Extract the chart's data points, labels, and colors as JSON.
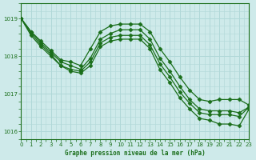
{
  "title": "Graphe pression niveau de la mer (hPa)",
  "bg_color": "#ceeaea",
  "grid_color": "#b0d8d8",
  "line_color": "#1a6e1a",
  "xlim": [
    0,
    23
  ],
  "ylim": [
    1015.8,
    1019.4
  ],
  "yticks": [
    1016,
    1017,
    1018,
    1019
  ],
  "xticks": [
    0,
    1,
    2,
    3,
    4,
    5,
    6,
    7,
    8,
    9,
    10,
    11,
    12,
    13,
    14,
    15,
    16,
    17,
    18,
    19,
    20,
    21,
    22,
    23
  ],
  "series": [
    {
      "x": [
        0,
        1,
        2,
        3,
        4,
        5,
        6,
        7,
        8,
        9,
        10,
        11,
        12,
        13,
        14,
        15,
        16,
        17,
        18,
        19,
        20,
        21,
        22,
        23
      ],
      "y": [
        1019.0,
        1018.65,
        1018.4,
        1018.15,
        1017.9,
        1017.85,
        1017.75,
        1018.2,
        1018.65,
        1018.8,
        1018.85,
        1018.85,
        1018.85,
        1018.65,
        1018.2,
        1017.85,
        1017.45,
        1017.1,
        1016.85,
        1016.8,
        1016.85,
        1016.85,
        1016.85,
        1016.7
      ],
      "marker": "D",
      "markersize": 2.5
    },
    {
      "x": [
        0,
        1,
        2,
        3,
        4,
        5,
        6,
        7,
        8,
        9,
        10,
        11,
        12,
        13,
        14,
        15,
        16,
        17,
        18,
        19,
        20,
        21,
        22,
        23
      ],
      "y": [
        1019.0,
        1018.65,
        1018.35,
        1018.1,
        1017.85,
        1017.75,
        1017.65,
        1017.95,
        1018.45,
        1018.6,
        1018.7,
        1018.7,
        1018.7,
        1018.45,
        1017.95,
        1017.6,
        1017.2,
        1016.85,
        1016.6,
        1016.55,
        1016.55,
        1016.55,
        1016.5,
        1016.65
      ],
      "marker": "D",
      "markersize": 2.5
    },
    {
      "x": [
        0,
        1,
        2,
        3,
        4,
        5,
        6,
        7,
        8,
        9,
        10,
        11,
        12,
        13,
        14,
        15,
        16,
        17,
        18,
        19,
        20,
        21,
        22,
        23
      ],
      "y": [
        1019.0,
        1018.6,
        1018.3,
        1018.05,
        1017.75,
        1017.65,
        1017.6,
        1017.85,
        1018.35,
        1018.5,
        1018.55,
        1018.55,
        1018.55,
        1018.3,
        1017.8,
        1017.45,
        1017.05,
        1016.75,
        1016.5,
        1016.45,
        1016.45,
        1016.45,
        1016.4,
        1016.65
      ],
      "marker": "D",
      "markersize": 2.5
    },
    {
      "x": [
        0,
        1,
        2,
        3,
        4,
        5,
        6,
        7,
        8,
        9,
        10,
        11,
        12,
        13,
        14,
        15,
        16,
        17,
        18,
        19,
        20,
        21,
        22,
        23
      ],
      "y": [
        1019.0,
        1018.55,
        1018.25,
        1018.0,
        1017.75,
        1017.6,
        1017.55,
        1017.75,
        1018.25,
        1018.4,
        1018.45,
        1018.45,
        1018.45,
        1018.2,
        1017.65,
        1017.3,
        1016.9,
        1016.6,
        1016.35,
        1016.3,
        1016.2,
        1016.2,
        1016.15,
        1016.6
      ],
      "marker": "D",
      "markersize": 2.5
    }
  ]
}
